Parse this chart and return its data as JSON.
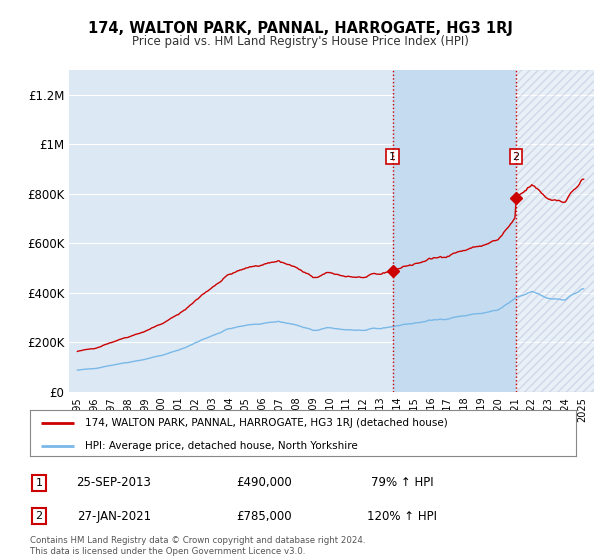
{
  "title": "174, WALTON PARK, PANNAL, HARROGATE, HG3 1RJ",
  "subtitle": "Price paid vs. HM Land Registry's House Price Index (HPI)",
  "ylabel_ticks": [
    "£0",
    "£200K",
    "£400K",
    "£600K",
    "£800K",
    "£1M",
    "£1.2M"
  ],
  "ytick_values": [
    0,
    200000,
    400000,
    600000,
    800000,
    1000000,
    1200000
  ],
  "ylim": [
    0,
    1300000
  ],
  "background_color": "#ffffff",
  "plot_bg_color": "#dce9f5",
  "shade_color": "#c5dcf0",
  "grid_color": "#ffffff",
  "hpi_color": "#7ab8e8",
  "price_color": "#cc0000",
  "sale1_date": 2013.73,
  "sale1_price": 490000,
  "sale2_date": 2021.07,
  "sale2_price": 785000,
  "vline_color": "#cc0000",
  "vline_style": ":",
  "legend_label_price": "174, WALTON PARK, PANNAL, HARROGATE, HG3 1RJ (detached house)",
  "legend_label_hpi": "HPI: Average price, detached house, North Yorkshire",
  "annotation1_date": "25-SEP-2013",
  "annotation1_price": "£490,000",
  "annotation1_pct": "79% ↑ HPI",
  "annotation2_date": "27-JAN-2021",
  "annotation2_price": "£785,000",
  "annotation2_pct": "120% ↑ HPI",
  "footer": "Contains HM Land Registry data © Crown copyright and database right 2024.\nThis data is licensed under the Open Government Licence v3.0.",
  "xmin": 1994.5,
  "xmax": 2025.7
}
